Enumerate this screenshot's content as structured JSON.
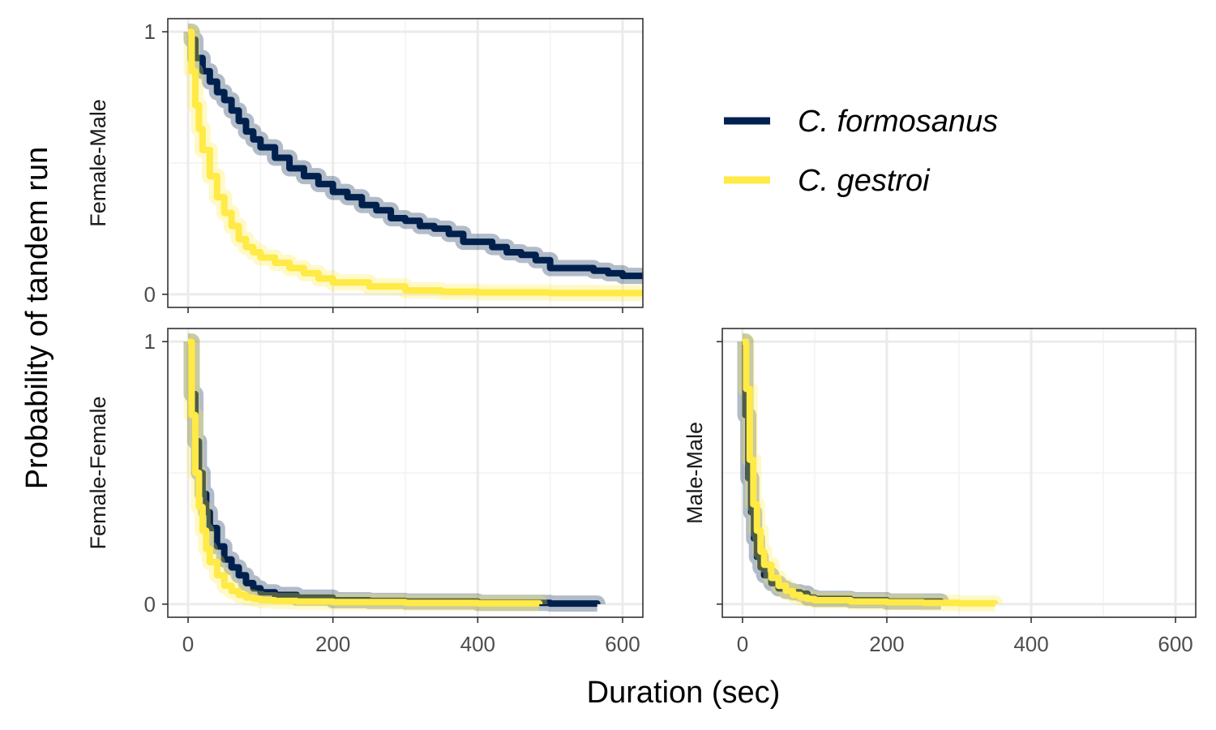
{
  "chart_data": {
    "type": "line",
    "title": "",
    "xlabel": "Duration (sec)",
    "ylabel": "Probability of tandem run",
    "xlim": [
      -28,
      628
    ],
    "ylim": [
      -0.05,
      1.05
    ],
    "x_ticks": [
      "0",
      "200",
      "400",
      "600"
    ],
    "y_ticks": [
      "0",
      "1"
    ],
    "grid": true,
    "legend_position": "top-right",
    "series_meta": [
      {
        "name": "C. formosanus",
        "color": "#00204d"
      },
      {
        "name": "C. gestroi",
        "color": "#ffea46"
      }
    ],
    "panels": [
      {
        "label": "Female-Male",
        "series": [
          {
            "name": "C. formosanus",
            "x": [
              0,
              5,
              10,
              20,
              30,
              40,
              50,
              60,
              70,
              80,
              90,
              100,
              120,
              140,
              160,
              180,
              200,
              220,
              240,
              260,
              280,
              300,
              320,
              340,
              360,
              380,
              400,
              420,
              440,
              460,
              480,
              500,
              520,
              540,
              560,
              580,
              600,
              628
            ],
            "y": [
              1.0,
              0.97,
              0.9,
              0.85,
              0.81,
              0.77,
              0.74,
              0.7,
              0.66,
              0.62,
              0.59,
              0.56,
              0.52,
              0.48,
              0.45,
              0.42,
              0.39,
              0.37,
              0.34,
              0.32,
              0.29,
              0.28,
              0.26,
              0.25,
              0.23,
              0.2,
              0.2,
              0.18,
              0.16,
              0.15,
              0.13,
              0.1,
              0.1,
              0.1,
              0.09,
              0.08,
              0.07,
              0.07
            ]
          },
          {
            "name": "C. gestroi",
            "x": [
              0,
              5,
              10,
              15,
              20,
              30,
              40,
              50,
              60,
              70,
              80,
              90,
              100,
              120,
              140,
              160,
              180,
              200,
              250,
              300,
              350,
              400,
              500,
              628
            ],
            "y": [
              1.0,
              0.85,
              0.72,
              0.63,
              0.55,
              0.45,
              0.37,
              0.31,
              0.26,
              0.21,
              0.18,
              0.16,
              0.14,
              0.12,
              0.1,
              0.08,
              0.06,
              0.045,
              0.03,
              0.015,
              0.01,
              0.007,
              0.005,
              0.005
            ]
          }
        ]
      },
      {
        "label": "Female-Female",
        "series": [
          {
            "name": "C. formosanus",
            "x": [
              0,
              5,
              10,
              15,
              20,
              25,
              30,
              40,
              50,
              60,
              70,
              80,
              90,
              100,
              120,
              150,
              200,
              250,
              300,
              400,
              500,
              565
            ],
            "y": [
              1.0,
              0.8,
              0.62,
              0.5,
              0.42,
              0.35,
              0.29,
              0.22,
              0.17,
              0.14,
              0.11,
              0.08,
              0.06,
              0.045,
              0.035,
              0.025,
              0.015,
              0.012,
              0.01,
              0.005,
              0.002,
              0.0
            ]
          },
          {
            "name": "C. gestroi",
            "x": [
              0,
              5,
              10,
              15,
              20,
              25,
              30,
              40,
              50,
              60,
              70,
              80,
              90,
              100,
              120,
              150,
              200,
              300,
              400,
              485
            ],
            "y": [
              1.0,
              0.72,
              0.5,
              0.37,
              0.28,
              0.21,
              0.16,
              0.11,
              0.07,
              0.05,
              0.035,
              0.025,
              0.02,
              0.015,
              0.012,
              0.01,
              0.008,
              0.005,
              0.003,
              0.0
            ]
          }
        ]
      },
      {
        "label": "Male-Male",
        "series": [
          {
            "name": "C. formosanus",
            "x": [
              0,
              4,
              8,
              12,
              16,
              20,
              25,
              30,
              40,
              50,
              60,
              70,
              80,
              90,
              100,
              150,
              200,
              275
            ],
            "y": [
              1.0,
              0.72,
              0.48,
              0.35,
              0.25,
              0.18,
              0.14,
              0.11,
              0.08,
              0.06,
              0.05,
              0.045,
              0.04,
              0.025,
              0.02,
              0.015,
              0.01,
              0.005
            ]
          },
          {
            "name": "C. gestroi",
            "x": [
              0,
              5,
              10,
              15,
              20,
              25,
              30,
              40,
              50,
              60,
              70,
              80,
              90,
              100,
              150,
              200,
              250,
              300,
              350
            ],
            "y": [
              1.0,
              0.82,
              0.55,
              0.38,
              0.28,
              0.2,
              0.15,
              0.1,
              0.07,
              0.05,
              0.035,
              0.025,
              0.02,
              0.015,
              0.01,
              0.007,
              0.005,
              0.003,
              0.002
            ]
          }
        ]
      }
    ]
  }
}
